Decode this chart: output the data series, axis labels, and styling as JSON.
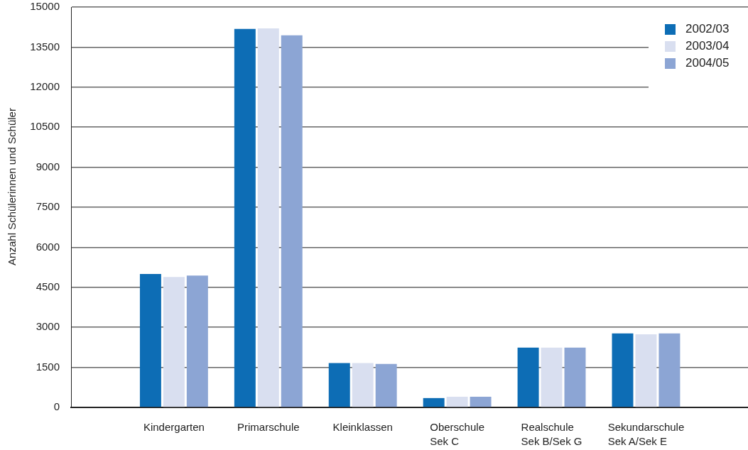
{
  "chart_data": {
    "type": "bar",
    "ylabel": "Anzahl Schülerinnen und Schüler",
    "categories": [
      "Kindergarten",
      "Primarschule",
      "Kleinklassen",
      "Oberschule\nSek C",
      "Realschule\nSek B/Sek G",
      "Sekundarschule\nSek A/Sek E"
    ],
    "series": [
      {
        "name": "2002/03",
        "color": "#0d6db5",
        "values": [
          5000,
          14180,
          1660,
          350,
          2240,
          2770
        ]
      },
      {
        "name": "2003/04",
        "color": "#d9dff0",
        "values": [
          4890,
          14200,
          1660,
          400,
          2240,
          2740
        ]
      },
      {
        "name": "2004/05",
        "color": "#8ca5d4",
        "values": [
          4940,
          13940,
          1630,
          400,
          2240,
          2770
        ]
      }
    ],
    "ylim": [
      0,
      15000
    ],
    "yticks": [
      0,
      1500,
      3000,
      4500,
      6000,
      7500,
      9000,
      10500,
      12000,
      13500,
      15000
    ],
    "grid": "y",
    "legend": "top right"
  }
}
